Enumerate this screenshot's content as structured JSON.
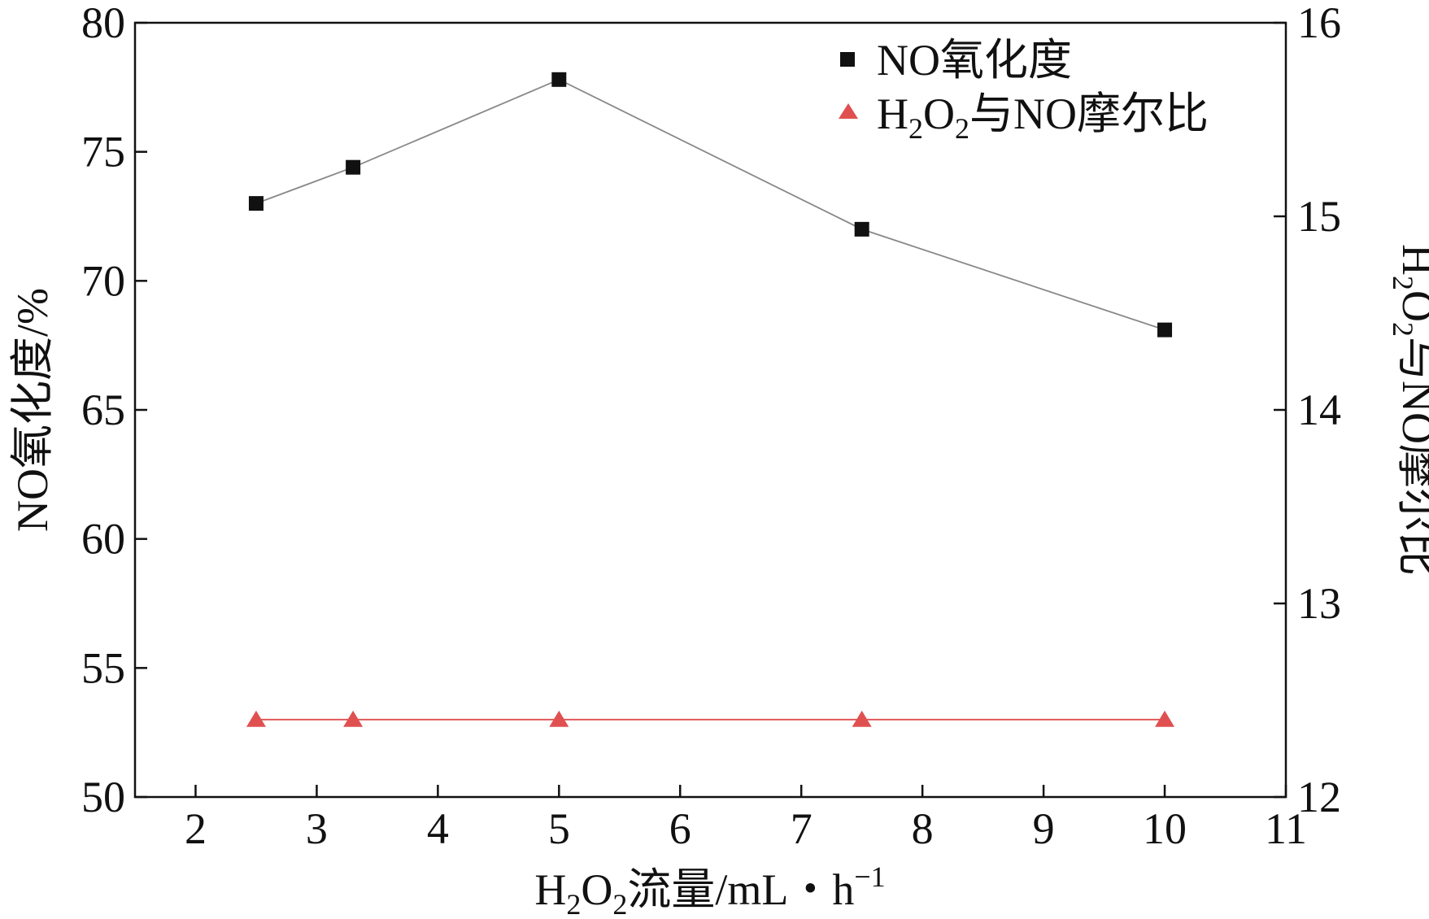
{
  "chart_data": {
    "type": "line",
    "xlabel": {
      "pre": "H",
      "sub1": "2",
      "mid": "O",
      "sub2": "2",
      "post": "流量/mL・h",
      "sup": "−1"
    },
    "ylabel_left": "NO氧化度/%",
    "ylabel_right": {
      "pre": "H",
      "sub1": "2",
      "mid": "O",
      "sub2": "2",
      "post": "与NO摩尔比"
    },
    "xlim": [
      1.5,
      11
    ],
    "ylim_left": [
      50,
      80
    ],
    "ylim_right": [
      12,
      16
    ],
    "x_ticks": [
      2,
      3,
      4,
      5,
      6,
      7,
      8,
      9,
      10,
      11
    ],
    "y_ticks_left": [
      50,
      55,
      60,
      65,
      70,
      75,
      80
    ],
    "y_ticks_right": [
      12,
      13,
      14,
      15,
      16
    ],
    "grid": false,
    "legend_position": "top-right",
    "series": [
      {
        "name": "NO氧化度",
        "axis": "left",
        "marker": "square",
        "color": "#111111",
        "line_color": "#888888",
        "x": [
          2.5,
          3.3,
          5,
          7.5,
          10
        ],
        "values": [
          73.0,
          74.4,
          77.8,
          72.0,
          68.1
        ]
      },
      {
        "name": "H2O2与NO摩尔比",
        "name_parts": {
          "pre": "H",
          "sub1": "2",
          "mid": "O",
          "sub2": "2",
          "post": "与NO摩尔比"
        },
        "axis": "right",
        "marker": "triangle",
        "color": "#e05050",
        "line_color": "#e05050",
        "x": [
          2.5,
          3.3,
          5,
          7.5,
          10
        ],
        "values": [
          12.4,
          12.4,
          12.4,
          12.4,
          12.4
        ]
      }
    ]
  }
}
